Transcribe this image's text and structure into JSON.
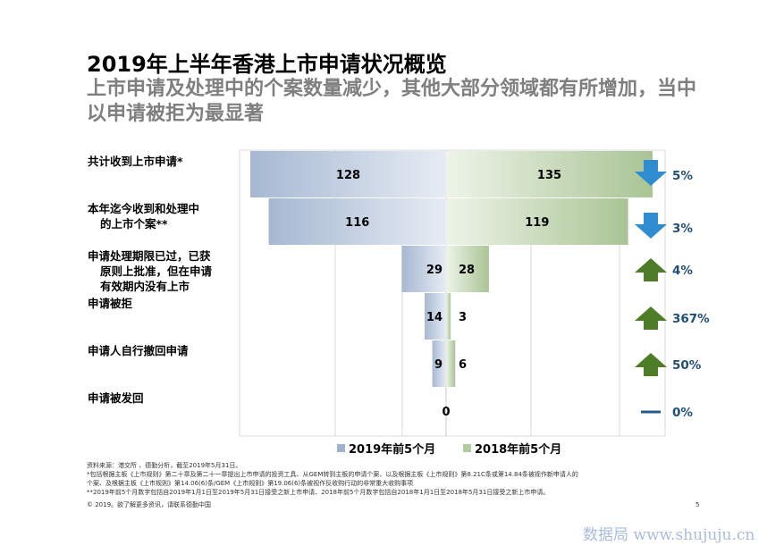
{
  "header": {
    "title": "2019年上半年香港上市申请状况概览",
    "subtitle": "上市申请及处理中的个案数量减少，其他大部分领域都有所增加，当中以申请被拒为最显著"
  },
  "chart_data": {
    "type": "bar",
    "orientation": "horizontal-butterfly",
    "categories": [
      [
        "共计收到上市申请*"
      ],
      [
        "本年迄今收到和处理中",
        "的上市个案**"
      ],
      [
        "申请处理期限已过，已获",
        "原则上批准，但在申请",
        "有效期内没有上市"
      ],
      [
        "申请被拒"
      ],
      [
        "申请人自行撤回申请"
      ],
      [
        "申请被发回"
      ]
    ],
    "series": [
      {
        "name": "2019年前5个月",
        "color": "#9fb3cf",
        "values": [
          128,
          116,
          29,
          14,
          9,
          0
        ]
      },
      {
        "name": "2018年前5个月",
        "color": "#b3cc9e",
        "values": [
          135,
          119,
          28,
          3,
          6,
          0
        ]
      }
    ],
    "changes": [
      {
        "label": "5%",
        "direction": "down"
      },
      {
        "label": "3%",
        "direction": "down"
      },
      {
        "label": "4%",
        "direction": "up"
      },
      {
        "label": "367%",
        "direction": "up"
      },
      {
        "label": "50%",
        "direction": "up"
      },
      {
        "label": "0%",
        "direction": "flat"
      }
    ],
    "change_colors": {
      "down": "#2e8ccf",
      "up": "#4e7d28",
      "flat": "#1f5c8c",
      "text": "#1f4e79"
    },
    "xlim": [
      0,
      135
    ],
    "grid": true,
    "legend": "bottom"
  },
  "notes": [
    "资料来源：港交所 、德勤分析，截至2019年5月31日。",
    "*包括根据主板《上市规则》第二十章及第二十一章提出上市申请的投资工具、从GEM转到主板的申请个案、以及根据主板《上市规则》第8.21C条或第14.84条被视作新申请人的",
    "个案、及根据主板《上市规则》第14.06(6)条/GEM《上市规则》第19.06(6)条被视作反收购行动的非常重大收购事项",
    "**2019年前5个月数字包括自2019年1月1日至2019年5月31日接受之新上市申请、2018年前5个月数字包括自2018年1月1日至2018年5月31日接受之新上市申请。"
  ],
  "copyright": "© 2019。欲了解更多资讯，请联系德勤中国",
  "page_number": "5",
  "watermark": "数据局 www.shujuju.cn"
}
